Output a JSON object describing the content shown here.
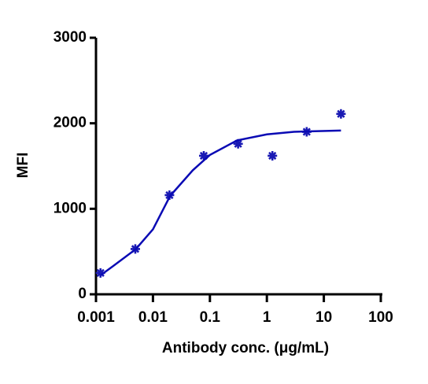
{
  "chart_data": {
    "type": "scatter",
    "xlabel": "Antibody conc. (μg/mL)",
    "ylabel": "MFI",
    "xscale": "log",
    "xlim": [
      0.001,
      100
    ],
    "xticks": [
      0.001,
      0.01,
      0.1,
      1,
      10,
      100
    ],
    "ylim": [
      0,
      3000
    ],
    "yticks": [
      0,
      1000,
      2000,
      3000
    ],
    "series": [
      {
        "style": "points",
        "color": "#1a1ab4",
        "x": [
          0.0012,
          0.0049,
          0.0195,
          0.078,
          0.3125,
          1.25,
          5,
          20
        ],
        "values": [
          250,
          530,
          1160,
          1620,
          1760,
          1620,
          1900,
          2110
        ]
      },
      {
        "style": "line",
        "color": "#0a0ab4",
        "x": [
          0.0012,
          0.002,
          0.005,
          0.01,
          0.02,
          0.05,
          0.1,
          0.3,
          1,
          3,
          20
        ],
        "values": [
          222,
          330,
          528,
          760,
          1150,
          1450,
          1630,
          1800,
          1870,
          1900,
          1915
        ]
      }
    ]
  }
}
